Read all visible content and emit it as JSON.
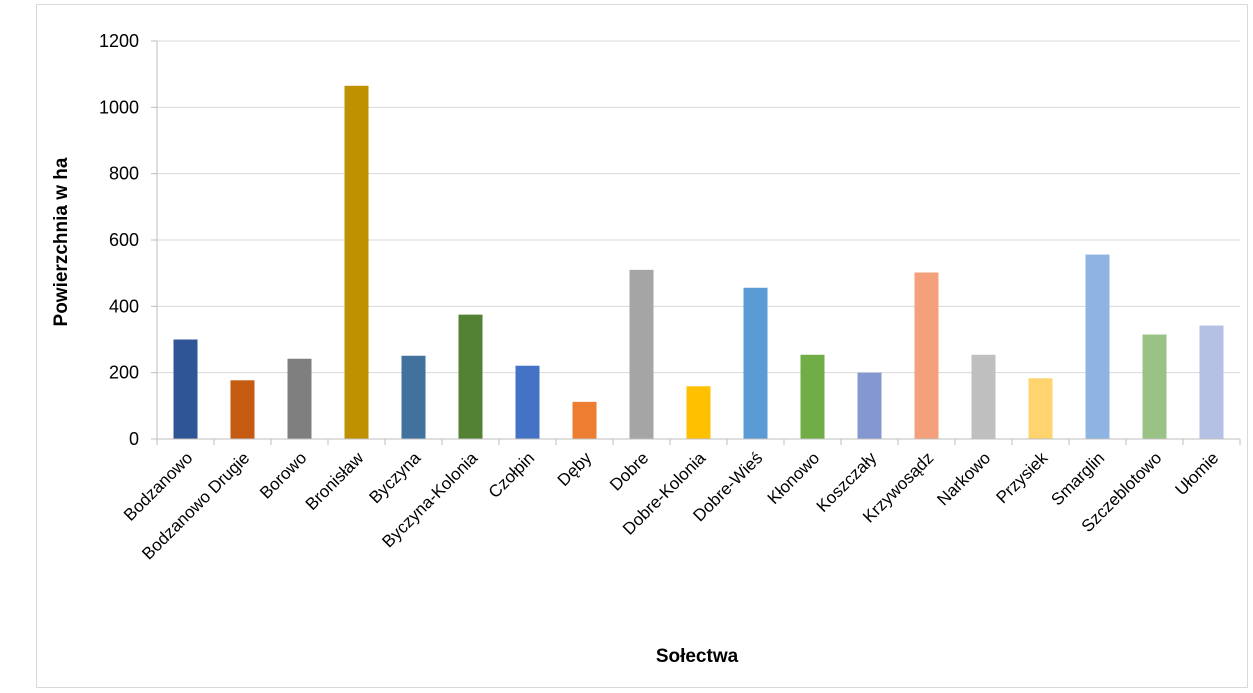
{
  "chart_data": {
    "type": "bar",
    "title": "",
    "xlabel": "Sołectwa",
    "ylabel": "Powierzchnia w ha",
    "ylim": [
      0,
      1200
    ],
    "yticks": [
      0,
      200,
      400,
      600,
      800,
      1000,
      1200
    ],
    "grid": true,
    "legend": "none",
    "categories": [
      "Bodzanowo",
      "Bodzanowo Drugie",
      "Borowo",
      "Bronisław",
      "Byczyna",
      "Byczyna-Kolonia",
      "Czołpin",
      "Dęby",
      "Dobre",
      "Dobre-Kolonia",
      "Dobre-Wieś",
      "Kłonowo",
      "Koszczały",
      "Krzywosądz",
      "Narkowo",
      "Przysiek",
      "Smarglin",
      "Szczeblotowo",
      "Ułomie"
    ],
    "values": [
      300,
      177,
      242,
      1065,
      251,
      375,
      221,
      112,
      510,
      159,
      456,
      254,
      200,
      502,
      254,
      183,
      556,
      315,
      342
    ],
    "colors": [
      "#2f5597",
      "#c55a11",
      "#7f7f7f",
      "#bf9000",
      "#41719c",
      "#548235",
      "#4472c4",
      "#ed7d31",
      "#a5a5a5",
      "#ffc000",
      "#5b9bd5",
      "#70ad47",
      "#8497d0",
      "#f4a07a",
      "#bfbfbf",
      "#ffd36e",
      "#8db4e2",
      "#9bc285",
      "#b4c0e4"
    ]
  }
}
